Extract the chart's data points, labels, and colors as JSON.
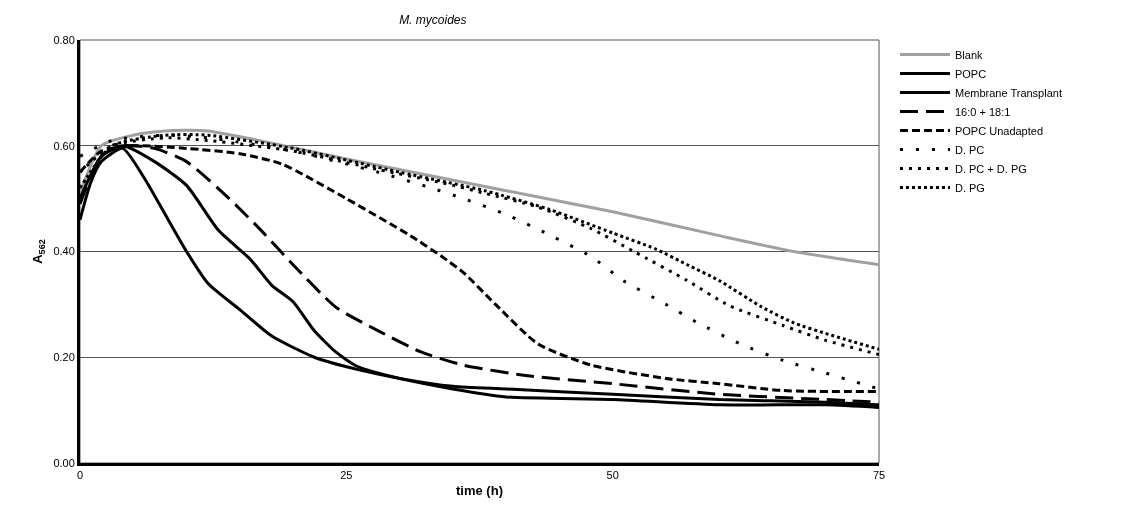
{
  "chart_data": {
    "type": "line",
    "title": "M. mycoides",
    "xlabel": "time (h)",
    "ylabel": "A$_{562}$",
    "xlim": [
      0,
      75
    ],
    "xticks": [
      0,
      25,
      50,
      75
    ],
    "ylim": [
      0,
      0.8
    ],
    "yticks": [
      {
        "value": 0,
        "label": "0.00"
      },
      {
        "value": 0.2,
        "label": "0.20"
      },
      {
        "value": 0.4,
        "label": "0.40"
      },
      {
        "value": 0.6,
        "label": "0.60"
      },
      {
        "value": 0.8,
        "label": "0.80"
      }
    ],
    "grid": "y",
    "legend": "right",
    "marker": "none",
    "series": [
      {
        "name": "Blank",
        "color": "#a0a0a0",
        "line_style": "solid",
        "x": [
          0,
          2,
          5,
          8,
          12,
          25,
          40,
          50,
          60,
          67,
          75
        ],
        "values": [
          0.51,
          0.6,
          0.62,
          0.628,
          0.628,
          0.575,
          0.515,
          0.475,
          0.43,
          0.4,
          0.375
        ]
      },
      {
        "name": "POPC",
        "color": "#000000",
        "line_style": "solid",
        "x": [
          0,
          1,
          2,
          4,
          6,
          8,
          10,
          12,
          15,
          18,
          22,
          26,
          30,
          35,
          40,
          50,
          60,
          70,
          75
        ],
        "values": [
          0.46,
          0.53,
          0.57,
          0.595,
          0.54,
          0.47,
          0.4,
          0.34,
          0.29,
          0.24,
          0.2,
          0.177,
          0.16,
          0.145,
          0.14,
          0.13,
          0.12,
          0.115,
          0.11
        ]
      },
      {
        "name": "Membrane Transplant",
        "color": "#000000",
        "line_style": "solid",
        "x": [
          0,
          2,
          4,
          7,
          10,
          13,
          16,
          18,
          20,
          22,
          24,
          26,
          30,
          35,
          40,
          50,
          60,
          70,
          75
        ],
        "values": [
          0.5,
          0.58,
          0.6,
          0.57,
          0.525,
          0.44,
          0.385,
          0.336,
          0.305,
          0.25,
          0.21,
          0.183,
          0.16,
          0.14,
          0.125,
          0.12,
          0.11,
          0.11,
          0.105
        ]
      },
      {
        "name": "16:0 + 18:1",
        "color": "#000000",
        "line_style": "dashed",
        "x": [
          0,
          2,
          4,
          7,
          10,
          14,
          17,
          20,
          24,
          28,
          32,
          36,
          42,
          50,
          60,
          70,
          75
        ],
        "values": [
          0.49,
          0.58,
          0.6,
          0.595,
          0.57,
          0.5,
          0.44,
          0.375,
          0.295,
          0.25,
          0.21,
          0.185,
          0.165,
          0.15,
          0.13,
          0.12,
          0.115
        ]
      },
      {
        "name": "POPC Unadapted",
        "color": "#000000",
        "line_style": "dashed",
        "x": [
          0,
          2,
          5,
          10,
          15,
          19,
          25,
          31,
          34,
          36,
          39,
          43,
          48,
          55,
          60,
          66,
          75
        ],
        "values": [
          0.55,
          0.59,
          0.6,
          0.595,
          0.585,
          0.565,
          0.5,
          0.43,
          0.39,
          0.36,
          0.3,
          0.225,
          0.185,
          0.16,
          0.15,
          0.137,
          0.135
        ]
      },
      {
        "name": "D. PC",
        "color": "#000000",
        "line_style": "dotted",
        "x": [
          0,
          3,
          8,
          12,
          20,
          28,
          33,
          36,
          40,
          44,
          48,
          51,
          55,
          58,
          62,
          66,
          70,
          75
        ],
        "values": [
          0.58,
          0.61,
          0.62,
          0.615,
          0.59,
          0.55,
          0.52,
          0.5,
          0.47,
          0.432,
          0.39,
          0.345,
          0.3,
          0.265,
          0.225,
          0.194,
          0.17,
          0.14
        ]
      },
      {
        "name": "D. PC + D. PG",
        "color": "#000000",
        "line_style": "dotted",
        "x": [
          0,
          3,
          8,
          12,
          20,
          28,
          34,
          38,
          43,
          48,
          52,
          57,
          61,
          66,
          70,
          75
        ],
        "values": [
          0.55,
          0.6,
          0.615,
          0.61,
          0.59,
          0.555,
          0.53,
          0.51,
          0.484,
          0.443,
          0.4,
          0.345,
          0.297,
          0.26,
          0.232,
          0.205
        ]
      },
      {
        "name": "D. PG",
        "color": "#000000",
        "line_style": "dotted",
        "x": [
          0,
          3,
          8,
          12,
          20,
          30,
          38,
          44,
          50,
          54,
          57,
          60,
          64,
          67,
          70,
          75
        ],
        "values": [
          0.52,
          0.6,
          0.62,
          0.62,
          0.595,
          0.55,
          0.515,
          0.48,
          0.435,
          0.405,
          0.375,
          0.345,
          0.295,
          0.265,
          0.245,
          0.215
        ]
      }
    ]
  }
}
